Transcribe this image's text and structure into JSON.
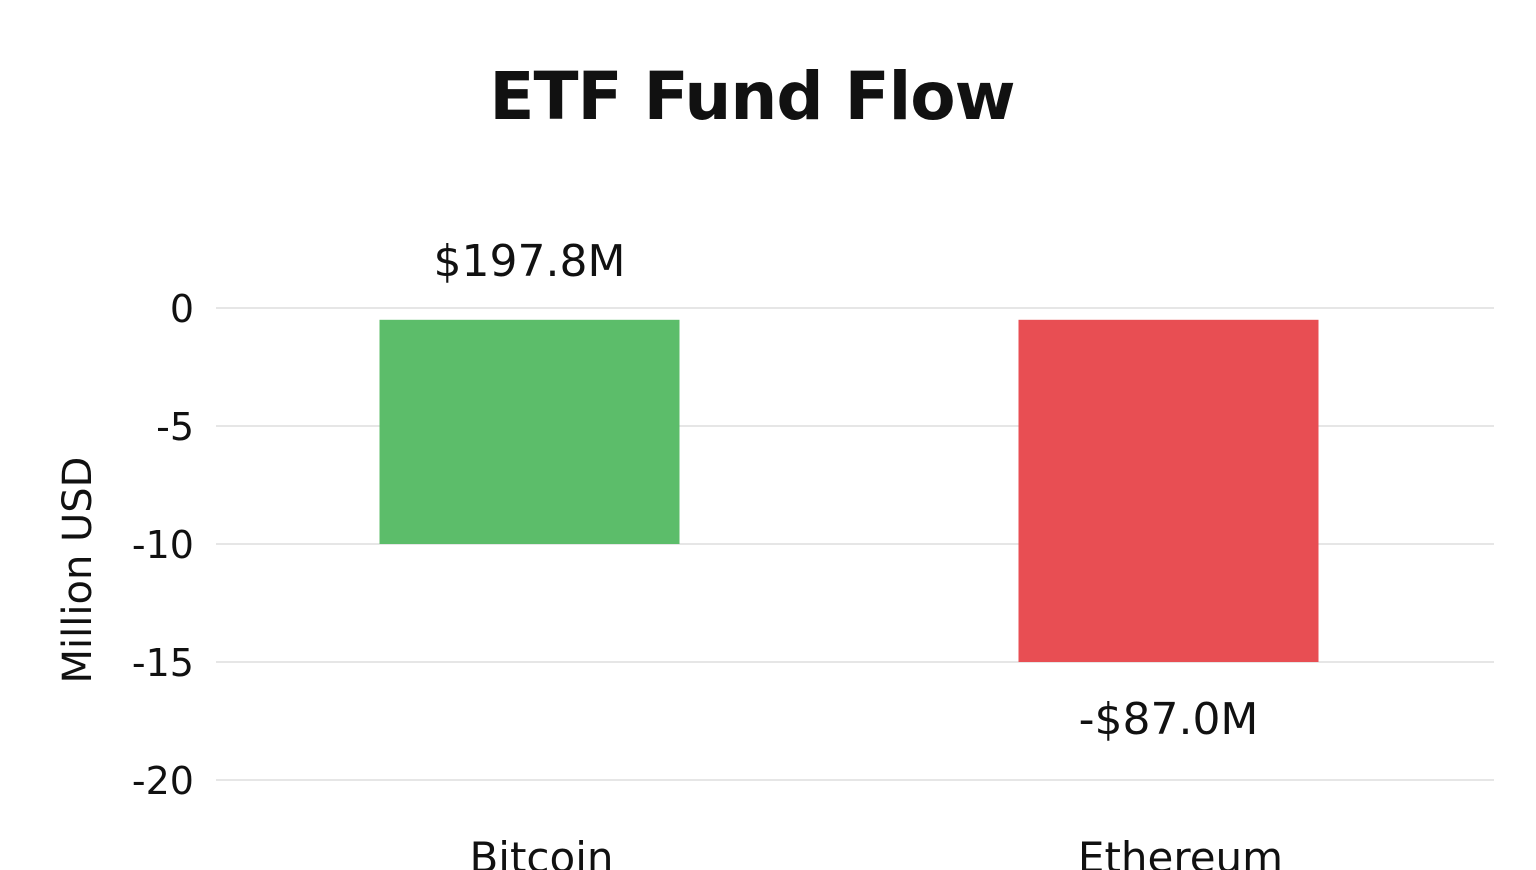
{
  "chart_data": {
    "type": "bar",
    "title": "ETF Fund Flow",
    "ylabel": "Million USD",
    "xlabel": "",
    "categories": [
      "Bitcoin",
      "Ethereum"
    ],
    "bars": [
      {
        "category": "Bitcoin",
        "from": -0.5,
        "to": -10,
        "label": "$197.8M",
        "label_position": "above",
        "color": "#5cbd6a"
      },
      {
        "category": "Ethereum",
        "from": -0.5,
        "to": -15,
        "label": "-$87.0M",
        "label_position": "below",
        "color": "#e84e53"
      }
    ],
    "yticks": [
      "0",
      "-5",
      "-10",
      "-15",
      "-20"
    ],
    "ylim": [
      -20,
      0
    ],
    "grid": true,
    "legend": false
  }
}
